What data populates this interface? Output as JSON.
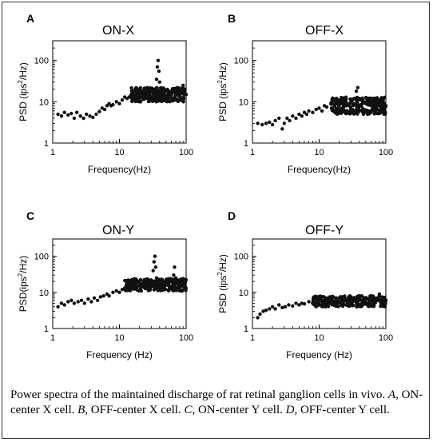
{
  "caption": {
    "text1": "Power spectra of the maintained discharge of rat retinal ganglion cells in vivo. ",
    "a": "A",
    "t2": ", ON-center X cell. ",
    "b": "B",
    "t3": ", OFF-center X cell. ",
    "c": "C",
    "t4": ", ON-center Y cell. ",
    "d": "D",
    "t5": ", OFF-center Y cell."
  },
  "colors": {
    "marker": "#111111",
    "axis": "#000000",
    "border": "#333333"
  },
  "chart_data": [
    {
      "type": "scatter",
      "panel_letter": "A",
      "title": "ON-X",
      "xlabel": "Frequency(Hz)",
      "ylabel_main": "PSD (ips",
      "ylabel_sup": "2",
      "ylabel_tail": "/Hz)",
      "xscale": "log",
      "yscale": "log",
      "xlim": [
        1,
        100
      ],
      "ylim": [
        1,
        300
      ],
      "xticks": [
        "1",
        "10",
        "100"
      ],
      "yticks": [
        "1",
        "10",
        "100"
      ],
      "series": [
        {
          "points": [
            [
              1.2,
              5
            ],
            [
              1.35,
              4.5
            ],
            [
              1.5,
              5.5
            ],
            [
              1.7,
              4.8
            ],
            [
              1.9,
              5.2
            ],
            [
              2.1,
              4
            ],
            [
              2.3,
              5.5
            ],
            [
              2.6,
              4.5
            ],
            [
              2.9,
              4
            ],
            [
              3.2,
              5
            ],
            [
              3.6,
              4.5
            ],
            [
              4,
              4.2
            ],
            [
              4.5,
              5
            ],
            [
              5,
              5.8
            ],
            [
              5.5,
              7
            ],
            [
              6,
              6.5
            ],
            [
              6.5,
              8
            ],
            [
              7,
              9
            ],
            [
              7.5,
              8
            ],
            [
              8,
              8.5
            ],
            [
              9,
              10
            ],
            [
              10,
              9
            ],
            [
              11,
              11
            ],
            [
              12,
              13
            ],
            [
              13,
              12
            ],
            [
              14,
              13
            ],
            [
              15,
              15
            ],
            [
              16,
              14
            ],
            [
              17,
              13
            ],
            [
              18,
              16
            ],
            [
              19,
              17
            ],
            [
              20,
              15
            ],
            [
              22,
              16
            ],
            [
              24,
              18
            ],
            [
              26,
              17
            ],
            [
              28,
              16
            ],
            [
              30,
              18
            ],
            [
              32,
              17
            ],
            [
              34,
              20
            ],
            [
              36,
              35
            ],
            [
              37,
              70
            ],
            [
              38,
              100
            ],
            [
              39,
              55
            ],
            [
              40,
              30
            ],
            [
              42,
              18
            ],
            [
              45,
              16
            ],
            [
              48,
              17
            ],
            [
              50,
              19
            ],
            [
              55,
              15
            ],
            [
              60,
              17
            ],
            [
              65,
              18
            ],
            [
              70,
              16
            ],
            [
              75,
              15
            ],
            [
              80,
              20
            ],
            [
              85,
              17
            ],
            [
              90,
              25
            ],
            [
              95,
              18
            ],
            [
              100,
              15
            ]
          ],
          "band": {
            "x_from": 15,
            "x_to": 100,
            "low": 10,
            "high": 22
          }
        }
      ]
    },
    {
      "type": "scatter",
      "panel_letter": "B",
      "title": "OFF-X",
      "xlabel": "Frequency(Hz)",
      "ylabel_main": "PSD (ips",
      "ylabel_sup": "2",
      "ylabel_tail": "/Hz)",
      "xscale": "log",
      "yscale": "log",
      "xlim": [
        1,
        100
      ],
      "ylim": [
        1,
        300
      ],
      "xticks": [
        "1",
        "10",
        "100"
      ],
      "yticks": [
        "1",
        "10",
        "100"
      ],
      "series": [
        {
          "points": [
            [
              1.2,
              3
            ],
            [
              1.4,
              2.8
            ],
            [
              1.6,
              3
            ],
            [
              1.8,
              3.2
            ],
            [
              2,
              2.8
            ],
            [
              2.2,
              3.5
            ],
            [
              2.5,
              4
            ],
            [
              2.8,
              2.2
            ],
            [
              3,
              3
            ],
            [
              3.3,
              4
            ],
            [
              3.6,
              3.5
            ],
            [
              4,
              4.5
            ],
            [
              4.5,
              4
            ],
            [
              5,
              5
            ],
            [
              5.5,
              4.5
            ],
            [
              6,
              5.5
            ],
            [
              6.5,
              5
            ],
            [
              7,
              6
            ],
            [
              8,
              5.5
            ],
            [
              9,
              6.5
            ],
            [
              10,
              7
            ],
            [
              11,
              6
            ],
            [
              12,
              8
            ],
            [
              13,
              7.5
            ],
            [
              15,
              9
            ],
            [
              17,
              8
            ],
            [
              20,
              9
            ],
            [
              22,
              10
            ],
            [
              25,
              8
            ],
            [
              28,
              9
            ],
            [
              30,
              11
            ],
            [
              33,
              9
            ],
            [
              36,
              18
            ],
            [
              38,
              22
            ],
            [
              40,
              12
            ],
            [
              45,
              10
            ],
            [
              50,
              9
            ],
            [
              55,
              11
            ],
            [
              60,
              10
            ],
            [
              70,
              12
            ],
            [
              80,
              9
            ],
            [
              90,
              10
            ],
            [
              100,
              8
            ]
          ],
          "band": {
            "x_from": 15,
            "x_to": 100,
            "low": 5,
            "high": 13
          }
        }
      ]
    },
    {
      "type": "scatter",
      "panel_letter": "C",
      "title": "ON-Y",
      "xlabel": "Frequency (Hz)",
      "ylabel_main": "PSD(ips",
      "ylabel_sup": "2",
      "ylabel_tail": "/Hz)",
      "xscale": "log",
      "yscale": "log",
      "xlim": [
        1,
        100
      ],
      "ylim": [
        1,
        300
      ],
      "xticks": [
        "1",
        "10",
        "100"
      ],
      "yticks": [
        "1",
        "10",
        "100"
      ],
      "series": [
        {
          "points": [
            [
              1.2,
              4
            ],
            [
              1.35,
              5
            ],
            [
              1.5,
              4.5
            ],
            [
              1.7,
              5.5
            ],
            [
              1.9,
              6
            ],
            [
              2.1,
              5
            ],
            [
              2.4,
              5.5
            ],
            [
              2.7,
              6
            ],
            [
              3,
              5
            ],
            [
              3.4,
              6.5
            ],
            [
              3.8,
              5.5
            ],
            [
              4.2,
              7
            ],
            [
              4.7,
              6
            ],
            [
              5.2,
              7.5
            ],
            [
              5.8,
              8
            ],
            [
              6.5,
              9
            ],
            [
              7,
              8
            ],
            [
              8,
              10
            ],
            [
              9,
              11
            ],
            [
              10,
              10
            ],
            [
              11,
              12
            ],
            [
              12,
              13
            ],
            [
              14,
              14
            ],
            [
              16,
              13
            ],
            [
              18,
              16
            ],
            [
              20,
              15
            ],
            [
              22,
              17
            ],
            [
              24,
              16
            ],
            [
              26,
              18
            ],
            [
              28,
              20
            ],
            [
              30,
              22
            ],
            [
              32,
              40
            ],
            [
              33,
              70
            ],
            [
              34,
              100
            ],
            [
              35,
              50
            ],
            [
              36,
              25
            ],
            [
              38,
              18
            ],
            [
              40,
              15
            ],
            [
              45,
              17
            ],
            [
              50,
              16
            ],
            [
              55,
              18
            ],
            [
              60,
              20
            ],
            [
              65,
              30
            ],
            [
              67,
              50
            ],
            [
              70,
              25
            ],
            [
              75,
              18
            ],
            [
              80,
              20
            ],
            [
              85,
              22
            ],
            [
              90,
              24
            ],
            [
              95,
              20
            ],
            [
              100,
              22
            ]
          ],
          "band": {
            "x_from": 12,
            "x_to": 100,
            "low": 11,
            "high": 24
          }
        }
      ]
    },
    {
      "type": "scatter",
      "panel_letter": "D",
      "title": "OFF-Y",
      "xlabel": "Frequency (Hz)",
      "ylabel_main": "PSD (ips",
      "ylabel_sup": "2",
      "ylabel_tail": "/Hz)",
      "xscale": "log",
      "yscale": "log",
      "xlim": [
        1,
        100
      ],
      "ylim": [
        1,
        300
      ],
      "xticks": [
        "1",
        "10",
        "100"
      ],
      "yticks": [
        "1",
        "10",
        "100"
      ],
      "series": [
        {
          "points": [
            [
              1.2,
              2
            ],
            [
              1.3,
              2.5
            ],
            [
              1.45,
              3
            ],
            [
              1.6,
              3.2
            ],
            [
              1.8,
              3.5
            ],
            [
              2,
              4
            ],
            [
              2.2,
              3.5
            ],
            [
              2.5,
              4.5
            ],
            [
              2.8,
              3.8
            ],
            [
              3.1,
              4
            ],
            [
              3.5,
              4.5
            ],
            [
              4,
              4.2
            ],
            [
              4.5,
              5
            ],
            [
              5,
              4.5
            ],
            [
              5.5,
              5
            ],
            [
              6,
              4.8
            ],
            [
              7,
              5.5
            ],
            [
              8,
              5
            ],
            [
              9,
              5.2
            ],
            [
              10,
              6
            ],
            [
              12,
              5.5
            ],
            [
              14,
              6.5
            ],
            [
              16,
              5.8
            ],
            [
              18,
              6
            ],
            [
              20,
              7
            ],
            [
              22,
              5.5
            ],
            [
              25,
              6.5
            ],
            [
              28,
              6
            ],
            [
              30,
              7.5
            ],
            [
              35,
              6
            ],
            [
              40,
              7
            ],
            [
              45,
              6
            ],
            [
              50,
              7
            ],
            [
              60,
              8
            ],
            [
              70,
              6
            ],
            [
              80,
              9
            ],
            [
              90,
              7
            ],
            [
              100,
              6
            ]
          ],
          "band": {
            "x_from": 8,
            "x_to": 100,
            "low": 4,
            "high": 8
          }
        }
      ]
    }
  ]
}
